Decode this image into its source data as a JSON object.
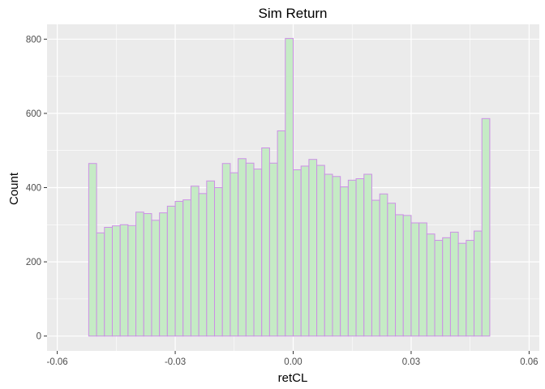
{
  "chart_data": {
    "type": "bar",
    "subtype": "histogram",
    "title": "Sim Return",
    "xlabel": "retCL",
    "ylabel": "Count",
    "xlim": [
      -0.0626,
      0.0626
    ],
    "ylim": [
      -40,
      840
    ],
    "x_ticks": [
      -0.06,
      -0.03,
      0.0,
      0.03,
      0.06
    ],
    "x_tick_labels": [
      "-0.06",
      "-0.03",
      "0.00",
      "0.03",
      "0.06"
    ],
    "y_ticks": [
      0,
      200,
      400,
      600,
      800
    ],
    "y_tick_labels": [
      "0",
      "200",
      "400",
      "600",
      "800"
    ],
    "grid": true,
    "panel_background": "#ebebeb",
    "grid_color": "#ffffff",
    "bar_fill": "#c5ebc5",
    "bar_stroke": "#cc8fe6",
    "bins": {
      "start": -0.06,
      "width": 0.002,
      "counts": [
        0,
        0,
        0,
        0,
        465,
        278,
        293,
        297,
        300,
        298,
        334,
        330,
        312,
        332,
        350,
        363,
        367,
        404,
        384,
        418,
        400,
        465,
        440,
        478,
        466,
        450,
        507,
        466,
        553,
        802,
        448,
        458,
        476,
        460,
        436,
        430,
        402,
        420,
        424,
        436,
        366,
        383,
        358,
        327,
        325,
        305,
        305,
        275,
        258,
        265,
        280,
        250,
        258,
        283,
        586,
        0,
        0,
        0,
        0,
        0
      ]
    }
  }
}
